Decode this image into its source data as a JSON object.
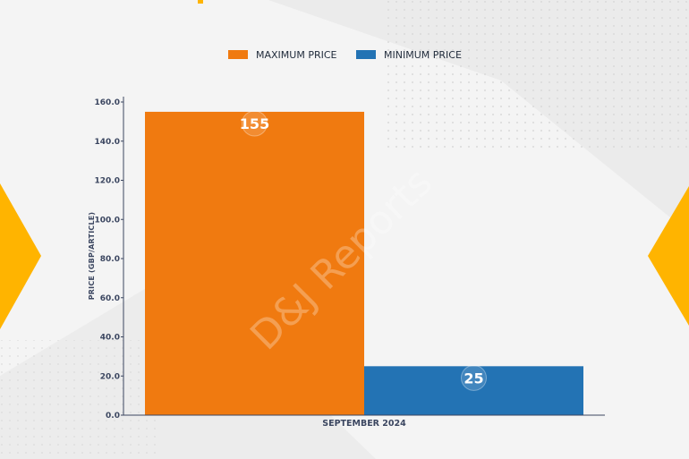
{
  "watermark": "D&J Reports",
  "colors": {
    "max": "#f07a10",
    "min": "#2373b4",
    "accent": "#ffb400",
    "axis": "#3b4660"
  },
  "chart_data": {
    "type": "bar",
    "categories": [
      "SEPTEMBER 2024"
    ],
    "series": [
      {
        "name": "MAXIMUM PRICE",
        "values": [
          155
        ]
      },
      {
        "name": "MINIMUM PRICE",
        "values": [
          25
        ]
      }
    ],
    "data_labels": [
      "155",
      "25"
    ],
    "title": "",
    "xlabel": "",
    "ylabel": "PRICE (GBP/ARTICLE)",
    "ylim": [
      0,
      160
    ],
    "yticks": [
      "0.0",
      "20.0",
      "40.0",
      "60.0",
      "80.0",
      "100.0",
      "120.0",
      "140.0",
      "160.0"
    ],
    "legend": "top-center",
    "grid": false
  }
}
